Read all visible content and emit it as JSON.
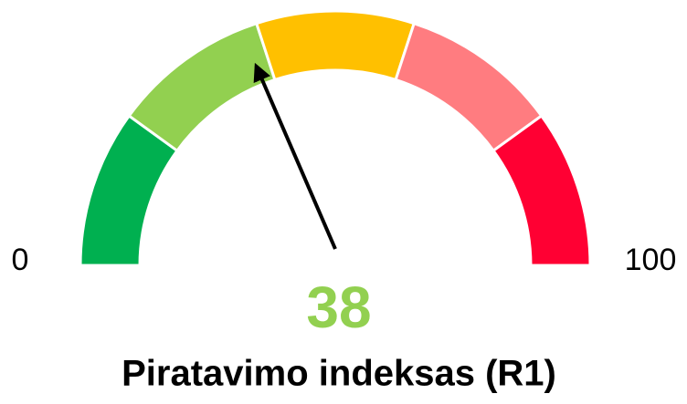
{
  "chart_data": {
    "type": "gauge",
    "title": "Piratavimo indeksas (R1)",
    "min": 0,
    "max": 100,
    "value": 38,
    "value_color": "#92d050",
    "segments": [
      {
        "value": 20,
        "color": "#00b050"
      },
      {
        "value": 20,
        "color": "#92d050"
      },
      {
        "value": 20,
        "color": "#ffc000"
      },
      {
        "value": 20,
        "color": "#ff7c80"
      },
      {
        "value": 20,
        "color": "#ff0033"
      }
    ]
  }
}
